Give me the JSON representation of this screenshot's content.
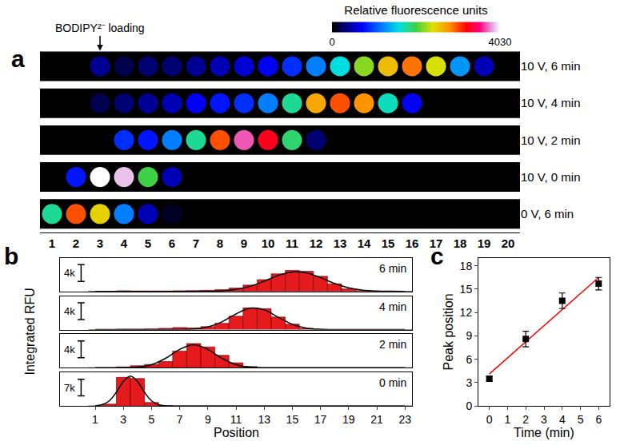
{
  "chart_data": [
    {
      "type": "scatter",
      "panel": "a",
      "x": [
        1,
        2,
        3,
        4,
        5,
        6,
        7,
        8,
        9,
        10,
        11,
        12,
        13,
        14,
        15,
        16,
        17,
        18,
        19,
        20
      ],
      "xlim": [
        0.5,
        20.5
      ],
      "xticks": [
        1,
        2,
        3,
        4,
        5,
        6,
        7,
        8,
        9,
        10,
        11,
        12,
        13,
        14,
        15,
        16,
        17,
        18,
        19,
        20
      ],
      "series": [
        {
          "name": "10 V, 6 min",
          "values": [
            0,
            0,
            400,
            200,
            300,
            300,
            400,
            500,
            600,
            700,
            900,
            1200,
            1600,
            2200,
            2600,
            2900,
            2400,
            1300,
            500,
            0
          ]
        },
        {
          "name": "10 V, 4 min",
          "values": [
            0,
            0,
            200,
            300,
            400,
            500,
            700,
            800,
            900,
            1200,
            1800,
            2700,
            3000,
            2800,
            1700,
            700,
            0,
            0,
            0,
            0
          ]
        },
        {
          "name": "10 V, 2 min",
          "values": [
            0,
            0,
            0,
            900,
            800,
            1200,
            1800,
            3000,
            3700,
            3300,
            1900,
            300,
            0,
            0,
            0,
            0,
            0,
            0,
            0,
            0
          ]
        },
        {
          "name": "10 V, 0 min",
          "values": [
            0,
            800,
            4030,
            3900,
            2000,
            500,
            0,
            0,
            0,
            0,
            0,
            0,
            0,
            0,
            0,
            0,
            0,
            0,
            0,
            0
          ]
        },
        {
          "name": "0 V, 6 min",
          "values": [
            1800,
            3000,
            2500,
            1200,
            500,
            100,
            0,
            0,
            0,
            0,
            0,
            0,
            0,
            0,
            0,
            0,
            0,
            0,
            0,
            0
          ]
        }
      ],
      "colorbar": {
        "title": "Relative fluorescence units",
        "range": [
          0,
          4030
        ],
        "ticks": [
          0,
          4030
        ]
      },
      "annotations": [
        {
          "text": "BODIPY²⁻ loading",
          "x": 3
        }
      ],
      "marker": "circle"
    },
    {
      "type": "bar",
      "panel": "b",
      "x_label": "Position",
      "y_label": "Integrated RFU",
      "x": [
        1,
        2,
        3,
        4,
        5,
        6,
        7,
        8,
        9,
        10,
        11,
        12,
        13,
        14,
        15,
        16,
        17,
        18,
        19,
        20,
        21,
        22,
        23
      ],
      "xlim": [
        -1.5,
        23.5
      ],
      "xticks": [
        1,
        3,
        5,
        7,
        9,
        11,
        13,
        15,
        17,
        19,
        21,
        23
      ],
      "tick_labels": "x",
      "color": "#e41a1c",
      "panels": [
        {
          "title": "6 min",
          "ylim": [
            0,
            8000
          ],
          "scale_bar": {
            "value": 4000,
            "label": "4k"
          },
          "values": [
            0,
            0,
            150,
            100,
            100,
            100,
            150,
            200,
            250,
            400,
            800,
            1500,
            2800,
            4200,
            5000,
            4800,
            3600,
            1800,
            600,
            200,
            0,
            0,
            0
          ],
          "fit": {
            "x": [
              1,
              2,
              3,
              4,
              5,
              6,
              7,
              8,
              9,
              10,
              11,
              12,
              13,
              14,
              15,
              16,
              17,
              18,
              19,
              20,
              21,
              22,
              23
            ],
            "values": [
              0,
              0,
              0,
              0,
              0,
              0,
              0,
              6,
              33,
              140,
              466,
              1207,
              2426,
              3807,
              4647,
              4420,
              3277,
              1890,
              850,
              297,
              81,
              17,
              3
            ],
            "color": "#000000"
          }
        },
        {
          "title": "4 min",
          "ylim": [
            0,
            8000
          ],
          "scale_bar": {
            "value": 4000,
            "label": "4k"
          },
          "values": [
            0,
            0,
            100,
            100,
            150,
            300,
            500,
            400,
            700,
            1500,
            3200,
            5200,
            5000,
            3000,
            1300,
            300,
            100,
            0,
            0,
            0,
            0,
            0,
            0
          ],
          "fit": {
            "x": [
              1,
              2,
              3,
              4,
              5,
              6,
              7,
              8,
              9,
              10,
              11,
              12,
              13,
              14,
              15,
              16,
              17,
              18,
              19,
              20,
              21,
              22,
              23
            ],
            "values": [
              0,
              0,
              0,
              0,
              0,
              2,
              21,
              141,
              618,
              1856,
              3739,
              5110,
              4727,
              2958,
              1254,
              360,
              69,
              9,
              0,
              0,
              0,
              0,
              0
            ],
            "color": "#000000"
          }
        },
        {
          "title": "2 min",
          "ylim": [
            0,
            8000
          ],
          "scale_bar": {
            "value": 4000,
            "label": "4k"
          },
          "values": [
            0,
            0,
            200,
            500,
            800,
            1500,
            4000,
            5800,
            5000,
            3000,
            1200,
            300,
            0,
            0,
            0,
            0,
            0,
            0,
            0,
            0,
            0,
            0,
            0
          ],
          "fit": {
            "x": [
              1,
              2,
              3,
              4,
              5,
              6,
              7,
              8,
              9,
              10,
              11,
              12,
              13,
              14,
              15,
              16,
              17,
              18,
              19,
              20,
              21,
              22,
              23
            ],
            "values": [
              0,
              2,
              21,
              157,
              744,
              2261,
              4402,
              5500,
              4402,
              2261,
              744,
              157,
              21,
              2,
              0,
              0,
              0,
              0,
              0,
              0,
              0,
              0,
              0
            ],
            "color": "#000000"
          }
        },
        {
          "title": "0 min",
          "ylim": [
            0,
            14000
          ],
          "scale_bar": {
            "value": 7000,
            "label": "7k"
          },
          "values": [
            0,
            800,
            12000,
            11500,
            1500,
            200,
            0,
            0,
            0,
            0,
            0,
            0,
            0,
            0,
            0,
            0,
            0,
            0,
            0,
            0,
            0,
            0,
            0
          ],
          "fit": {
            "x": [
              1,
              1.5,
              2,
              2.5,
              3,
              3.5,
              4,
              4.5,
              5,
              5.5,
              6,
              7,
              8,
              23
            ],
            "values": [
              95,
              550,
              2150,
              5730,
              10288,
              12500,
              10288,
              5730,
              2150,
              550,
              95,
              1,
              0,
              0
            ],
            "color": "#000000"
          }
        }
      ]
    },
    {
      "type": "scatter",
      "panel": "c",
      "x_label": "Time (min)",
      "y_label": "Peak position",
      "x": [
        0,
        2,
        4,
        6
      ],
      "values": [
        3.5,
        8.6,
        13.5,
        15.7
      ],
      "errors": [
        0.3,
        1.0,
        1.0,
        0.8
      ],
      "color": "#000000",
      "marker": "square",
      "fit": {
        "x": [
          0,
          6
        ],
        "values": [
          4.1,
          16.5
        ],
        "color": "#ff0000"
      },
      "xlim": [
        -0.6,
        6.6
      ],
      "xticks": [
        0,
        1,
        2,
        3,
        4,
        5,
        6
      ],
      "ylim": [
        0,
        19
      ],
      "yticks": [
        0,
        3,
        6,
        9,
        12,
        15,
        18
      ]
    }
  ]
}
